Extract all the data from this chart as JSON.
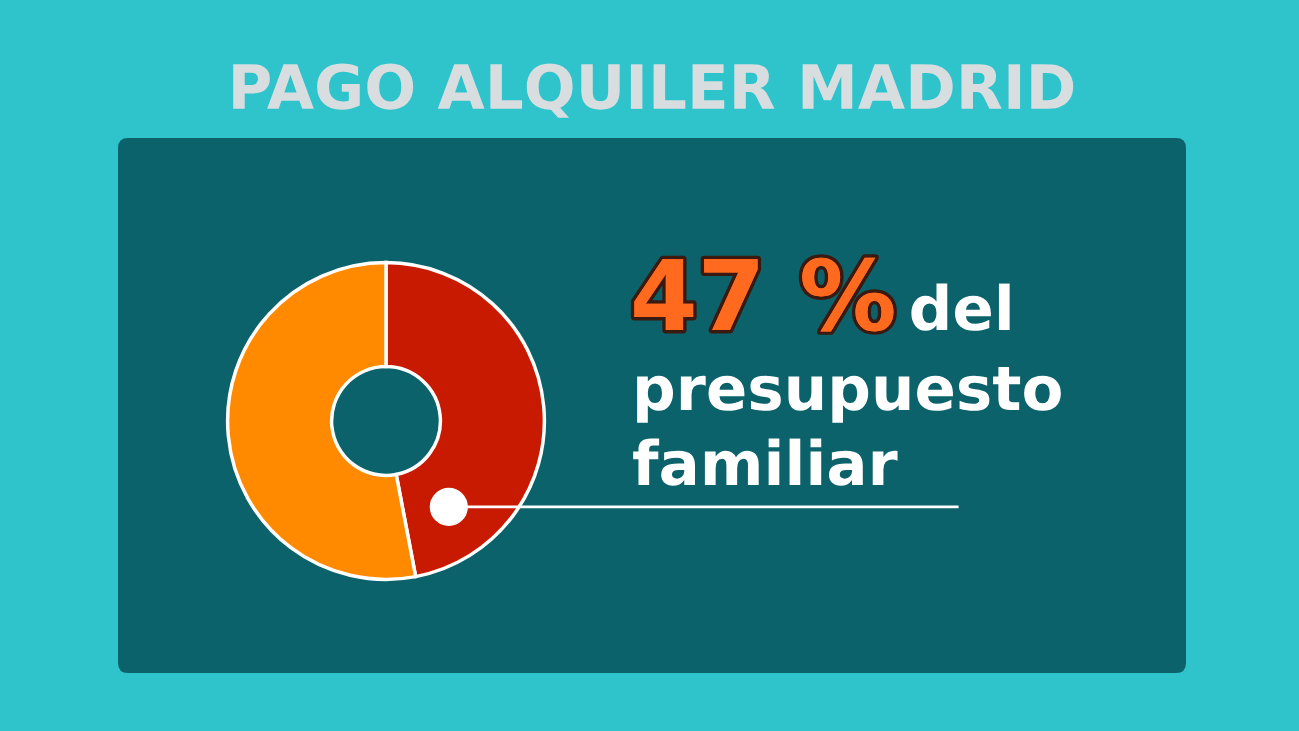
{
  "chart_data": {
    "type": "donut",
    "title": "PAGO ALQUILER MADRID",
    "categories": [
      null,
      null
    ],
    "values": [
      47,
      53
    ],
    "colors": [
      "#c81a00",
      "#ff8a00"
    ],
    "annotations": [
      "47 %",
      "del presupuesto familiar"
    ]
  }
}
